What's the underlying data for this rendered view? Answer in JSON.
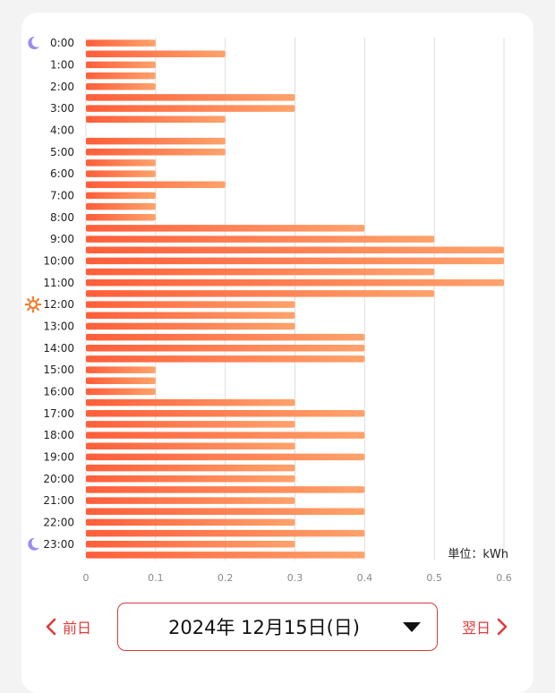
{
  "colors": {
    "bar_start": "#ff5e3a",
    "bar_end": "#ffa26b",
    "grid": "#dddddd",
    "moon": "#9b8cf0",
    "sun": "#f07a2a",
    "accent": "#e03a3a"
  },
  "navigation": {
    "prev_label": "前日",
    "next_label": "翌日",
    "date_label": "2024年 12月15日(日)"
  },
  "chart_data": {
    "type": "bar",
    "orientation": "horizontal",
    "unit_label": "単位：kWh",
    "xlim": [
      0,
      0.6
    ],
    "x_ticks": [
      "0",
      "0.1",
      "0.2",
      "0.3",
      "0.4",
      "0.5",
      "0.6"
    ],
    "hour_labels": [
      "0:00",
      "1:00",
      "2:00",
      "3:00",
      "4:00",
      "5:00",
      "6:00",
      "7:00",
      "8:00",
      "9:00",
      "10:00",
      "11:00",
      "12:00",
      "13:00",
      "14:00",
      "15:00",
      "16:00",
      "17:00",
      "18:00",
      "19:00",
      "20:00",
      "21:00",
      "22:00",
      "23:00"
    ],
    "icons": [
      {
        "hour": "0:00",
        "icon": "moon-icon"
      },
      {
        "hour": "12:00",
        "icon": "sun-icon"
      },
      {
        "hour": "23:00",
        "icon": "moon-icon"
      }
    ],
    "values": [
      0.1,
      0.2,
      0.1,
      0.1,
      0.1,
      0.3,
      0.3,
      0.2,
      0.0,
      0.2,
      0.2,
      0.1,
      0.1,
      0.2,
      0.1,
      0.1,
      0.1,
      0.4,
      0.5,
      0.6,
      0.6,
      0.5,
      0.6,
      0.5,
      0.3,
      0.3,
      0.3,
      0.4,
      0.4,
      0.4,
      0.1,
      0.1,
      0.1,
      0.3,
      0.4,
      0.3,
      0.4,
      0.3,
      0.4,
      0.3,
      0.3,
      0.4,
      0.3,
      0.4,
      0.3,
      0.4,
      0.3,
      0.4
    ]
  }
}
